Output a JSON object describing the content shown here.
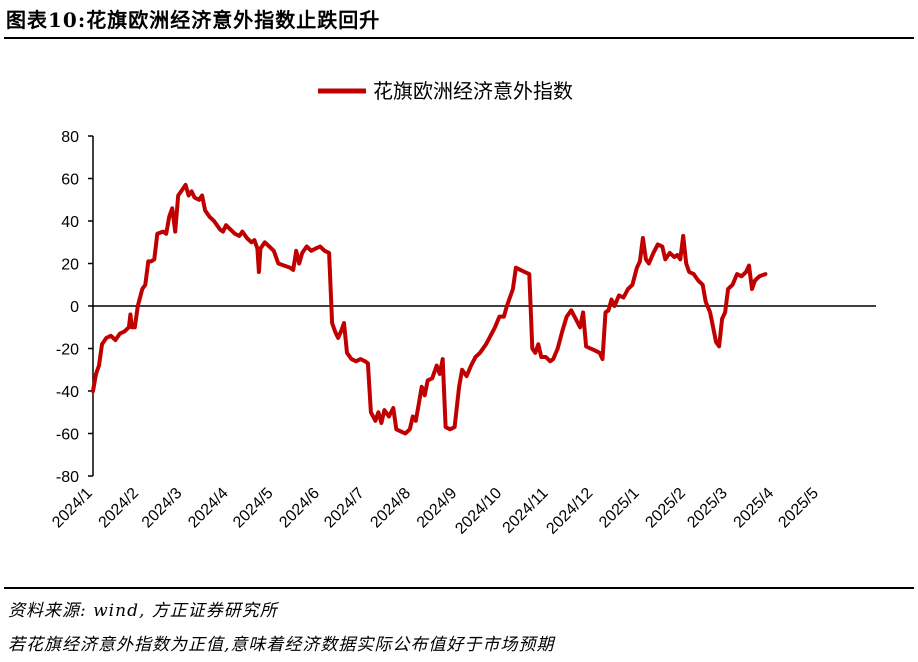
{
  "figure": {
    "title": "图表10:花旗欧洲经济意外指数止跌回升",
    "source": "资料来源: wind, 方正证券研究所",
    "note": "若花旗经济意外指数为正值,意味着经济数据实际公布值好于市场预期"
  },
  "colors": {
    "series": "#c00000",
    "axis": "#000000"
  },
  "chart_data": {
    "type": "line",
    "title": "",
    "xlabel": "",
    "ylabel": "",
    "ylim": [
      -80,
      80
    ],
    "yticks": [
      -80,
      -60,
      -40,
      -20,
      0,
      20,
      40,
      60,
      80
    ],
    "xlim": [
      "2024-01-01",
      "2025-06-08"
    ],
    "xticks": [
      {
        "label": "2024/1",
        "date": "2024-01-01"
      },
      {
        "label": "2024/2",
        "date": "2024-02-01"
      },
      {
        "label": "2024/3",
        "date": "2024-03-01"
      },
      {
        "label": "2024/4",
        "date": "2024-04-01"
      },
      {
        "label": "2024/5",
        "date": "2024-05-01"
      },
      {
        "label": "2024/6",
        "date": "2024-06-01"
      },
      {
        "label": "2024/7",
        "date": "2024-07-01"
      },
      {
        "label": "2024/8",
        "date": "2024-08-01"
      },
      {
        "label": "2024/9",
        "date": "2024-09-01"
      },
      {
        "label": "2024/10",
        "date": "2024-10-01"
      },
      {
        "label": "2024/11",
        "date": "2024-11-01"
      },
      {
        "label": "2024/12",
        "date": "2024-12-01"
      },
      {
        "label": "2025/1",
        "date": "2025-01-01"
      },
      {
        "label": "2025/2",
        "date": "2025-02-01"
      },
      {
        "label": "2025/3",
        "date": "2025-03-01"
      },
      {
        "label": "2025/4",
        "date": "2025-04-01"
      },
      {
        "label": "2025/5",
        "date": "2025-05-01"
      }
    ],
    "grid": false,
    "legend": "top-center",
    "series": [
      {
        "name": "花旗欧洲经济意外指数",
        "points": [
          [
            "2024-01-01",
            -40
          ],
          [
            "2024-01-03",
            -32
          ],
          [
            "2024-01-05",
            -28
          ],
          [
            "2024-01-07",
            -18
          ],
          [
            "2024-01-10",
            -15
          ],
          [
            "2024-01-13",
            -14
          ],
          [
            "2024-01-16",
            -16
          ],
          [
            "2024-01-19",
            -13
          ],
          [
            "2024-01-22",
            -12
          ],
          [
            "2024-01-25",
            -10
          ],
          [
            "2024-01-26",
            -4
          ],
          [
            "2024-01-27",
            -10
          ],
          [
            "2024-01-29",
            -10
          ],
          [
            "2024-01-31",
            0
          ],
          [
            "2024-02-03",
            8
          ],
          [
            "2024-02-05",
            10
          ],
          [
            "2024-02-07",
            21
          ],
          [
            "2024-02-09",
            21
          ],
          [
            "2024-02-11",
            22
          ],
          [
            "2024-02-13",
            34
          ],
          [
            "2024-02-17",
            35
          ],
          [
            "2024-02-19",
            34
          ],
          [
            "2024-02-21",
            42
          ],
          [
            "2024-02-23",
            46
          ],
          [
            "2024-02-25",
            35
          ],
          [
            "2024-02-27",
            52
          ],
          [
            "2024-03-01",
            55
          ],
          [
            "2024-03-03",
            57
          ],
          [
            "2024-03-05",
            52
          ],
          [
            "2024-03-07",
            54
          ],
          [
            "2024-03-09",
            51
          ],
          [
            "2024-03-12",
            50
          ],
          [
            "2024-03-14",
            52
          ],
          [
            "2024-03-16",
            45
          ],
          [
            "2024-03-19",
            42
          ],
          [
            "2024-03-22",
            40
          ],
          [
            "2024-03-24",
            38
          ],
          [
            "2024-03-26",
            36
          ],
          [
            "2024-03-28",
            35
          ],
          [
            "2024-03-30",
            38
          ],
          [
            "2024-04-02",
            36
          ],
          [
            "2024-04-05",
            34
          ],
          [
            "2024-04-08",
            33
          ],
          [
            "2024-04-10",
            35
          ],
          [
            "2024-04-13",
            32
          ],
          [
            "2024-04-16",
            30
          ],
          [
            "2024-04-18",
            31
          ],
          [
            "2024-04-20",
            27
          ],
          [
            "2024-04-21",
            16
          ],
          [
            "2024-04-22",
            27
          ],
          [
            "2024-04-25",
            30
          ],
          [
            "2024-04-28",
            28
          ],
          [
            "2024-05-01",
            26
          ],
          [
            "2024-05-04",
            20
          ],
          [
            "2024-05-08",
            19
          ],
          [
            "2024-05-12",
            18
          ],
          [
            "2024-05-14",
            17
          ],
          [
            "2024-05-16",
            26
          ],
          [
            "2024-05-18",
            20
          ],
          [
            "2024-05-20",
            25
          ],
          [
            "2024-05-23",
            28
          ],
          [
            "2024-05-26",
            26
          ],
          [
            "2024-05-29",
            27
          ],
          [
            "2024-06-01",
            28
          ],
          [
            "2024-06-04",
            26
          ],
          [
            "2024-06-07",
            25
          ],
          [
            "2024-06-09",
            -8
          ],
          [
            "2024-06-11",
            -12
          ],
          [
            "2024-06-13",
            -15
          ],
          [
            "2024-06-15",
            -12
          ],
          [
            "2024-06-17",
            -8
          ],
          [
            "2024-06-19",
            -22
          ],
          [
            "2024-06-22",
            -25
          ],
          [
            "2024-06-25",
            -26
          ],
          [
            "2024-06-28",
            -25
          ],
          [
            "2024-07-01",
            -26
          ],
          [
            "2024-07-03",
            -27
          ],
          [
            "2024-07-05",
            -50
          ],
          [
            "2024-07-08",
            -54
          ],
          [
            "2024-07-10",
            -50
          ],
          [
            "2024-07-12",
            -55
          ],
          [
            "2024-07-14",
            -49
          ],
          [
            "2024-07-17",
            -52
          ],
          [
            "2024-07-20",
            -48
          ],
          [
            "2024-07-22",
            -58
          ],
          [
            "2024-07-25",
            -59
          ],
          [
            "2024-07-28",
            -60
          ],
          [
            "2024-07-31",
            -58
          ],
          [
            "2024-08-02",
            -52
          ],
          [
            "2024-08-04",
            -54
          ],
          [
            "2024-08-06",
            -46
          ],
          [
            "2024-08-08",
            -38
          ],
          [
            "2024-08-10",
            -42
          ],
          [
            "2024-08-12",
            -35
          ],
          [
            "2024-08-15",
            -34
          ],
          [
            "2024-08-18",
            -28
          ],
          [
            "2024-08-20",
            -32
          ],
          [
            "2024-08-22",
            -25
          ],
          [
            "2024-08-24",
            -57
          ],
          [
            "2024-08-27",
            -58
          ],
          [
            "2024-08-30",
            -57
          ],
          [
            "2024-09-02",
            -38
          ],
          [
            "2024-09-04",
            -30
          ],
          [
            "2024-09-07",
            -33
          ],
          [
            "2024-09-10",
            -28
          ],
          [
            "2024-09-13",
            -24
          ],
          [
            "2024-09-16",
            -22
          ],
          [
            "2024-09-20",
            -18
          ],
          [
            "2024-09-23",
            -14
          ],
          [
            "2024-09-26",
            -10
          ],
          [
            "2024-09-29",
            -5
          ],
          [
            "2024-10-02",
            -5
          ],
          [
            "2024-10-04",
            0
          ],
          [
            "2024-10-06",
            4
          ],
          [
            "2024-10-08",
            8
          ],
          [
            "2024-10-10",
            18
          ],
          [
            "2024-10-13",
            17
          ],
          [
            "2024-10-16",
            16
          ],
          [
            "2024-10-19",
            15
          ],
          [
            "2024-10-21",
            -20
          ],
          [
            "2024-10-23",
            -22
          ],
          [
            "2024-10-25",
            -18
          ],
          [
            "2024-10-27",
            -24
          ],
          [
            "2024-10-30",
            -24
          ],
          [
            "2024-11-02",
            -26
          ],
          [
            "2024-11-04",
            -25
          ],
          [
            "2024-11-07",
            -20
          ],
          [
            "2024-11-10",
            -12
          ],
          [
            "2024-11-13",
            -5
          ],
          [
            "2024-11-16",
            -2
          ],
          [
            "2024-11-19",
            -6
          ],
          [
            "2024-11-22",
            -10
          ],
          [
            "2024-11-24",
            -3
          ],
          [
            "2024-11-26",
            -19
          ],
          [
            "2024-11-29",
            -20
          ],
          [
            "2024-12-02",
            -21
          ],
          [
            "2024-12-05",
            -22
          ],
          [
            "2024-12-07",
            -25
          ],
          [
            "2024-12-09",
            -3
          ],
          [
            "2024-12-11",
            -2
          ],
          [
            "2024-12-13",
            3
          ],
          [
            "2024-12-15",
            0
          ],
          [
            "2024-12-18",
            5
          ],
          [
            "2024-12-21",
            4
          ],
          [
            "2024-12-24",
            8
          ],
          [
            "2024-12-27",
            10
          ],
          [
            "2024-12-30",
            18
          ],
          [
            "2025-01-01",
            21
          ],
          [
            "2025-01-03",
            32
          ],
          [
            "2025-01-05",
            22
          ],
          [
            "2025-01-07",
            20
          ],
          [
            "2025-01-10",
            25
          ],
          [
            "2025-01-13",
            29
          ],
          [
            "2025-01-16",
            28
          ],
          [
            "2025-01-18",
            22
          ],
          [
            "2025-01-21",
            25
          ],
          [
            "2025-01-24",
            23
          ],
          [
            "2025-01-26",
            24
          ],
          [
            "2025-01-28",
            22
          ],
          [
            "2025-01-30",
            33
          ],
          [
            "2025-02-01",
            20
          ],
          [
            "2025-02-03",
            16
          ],
          [
            "2025-02-06",
            15
          ],
          [
            "2025-02-09",
            12
          ],
          [
            "2025-02-12",
            10
          ],
          [
            "2025-02-14",
            2
          ],
          [
            "2025-02-17",
            -3
          ],
          [
            "2025-02-19",
            -10
          ],
          [
            "2025-02-21",
            -17
          ],
          [
            "2025-02-23",
            -19
          ],
          [
            "2025-02-25",
            -6
          ],
          [
            "2025-02-27",
            -3
          ],
          [
            "2025-03-01",
            8
          ],
          [
            "2025-03-04",
            10
          ],
          [
            "2025-03-07",
            15
          ],
          [
            "2025-03-10",
            14
          ],
          [
            "2025-03-13",
            16
          ],
          [
            "2025-03-15",
            19
          ],
          [
            "2025-03-17",
            8
          ],
          [
            "2025-03-19",
            12
          ],
          [
            "2025-03-22",
            14
          ],
          [
            "2025-03-26",
            15
          ]
        ]
      }
    ]
  }
}
